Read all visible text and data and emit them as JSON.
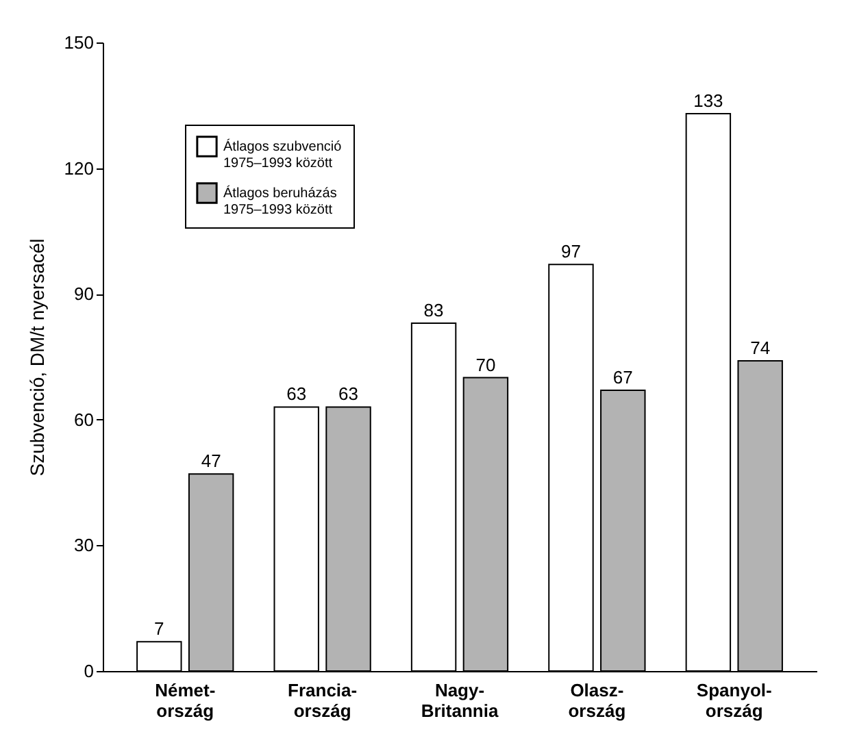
{
  "chart_data": {
    "type": "bar",
    "ylabel": "Szubvenció, DM/t nyersacél",
    "categories": [
      "Német-\nország",
      "Francia-\nország",
      "Nagy-\nBritannia",
      "Olasz-\nország",
      "Spanyol-\nország"
    ],
    "series": [
      {
        "name": "Átlagos szubvenció\n1975–1993 között",
        "color": "#ffffff",
        "values": [
          7,
          63,
          83,
          97,
          133
        ]
      },
      {
        "name": "Átlagos beruházás\n1975–1993 között",
        "color": "#b3b3b3",
        "values": [
          47,
          63,
          70,
          67,
          74
        ]
      }
    ],
    "ylim": [
      0,
      150
    ],
    "yticks": [
      0,
      30,
      60,
      90,
      120,
      150
    ],
    "grid": false,
    "legend": "top left",
    "data_labels": true
  }
}
